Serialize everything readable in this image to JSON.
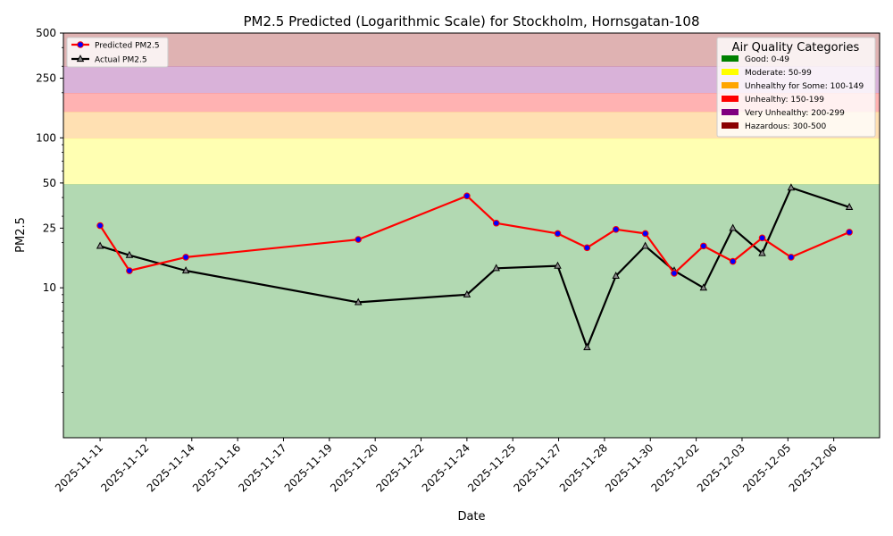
{
  "chart_data": {
    "type": "line",
    "title": "PM2.5 Predicted (Logarithmic Scale) for Stockholm, Hornsgatan-108",
    "xlabel": "Date",
    "ylabel": "PM2.5",
    "yscale": "log",
    "ylim": [
      1,
      500
    ],
    "xlim_days": [
      -0.8,
      17.0
    ],
    "yticks": [
      10,
      25,
      50,
      100,
      250,
      500
    ],
    "ytick_labels": [
      "10",
      "25",
      "50",
      "100",
      "250",
      "500"
    ],
    "xticks": [
      {
        "day": 0,
        "label": "2025-11-11"
      },
      {
        "day": 1,
        "label": "2025-11-12"
      },
      {
        "day": 2,
        "label": "2025-11-14"
      },
      {
        "day": 3,
        "label": "2025-11-16"
      },
      {
        "day": 4,
        "label": "2025-11-17"
      },
      {
        "day": 5,
        "label": "2025-11-19"
      },
      {
        "day": 6,
        "label": "2025-11-20"
      },
      {
        "day": 7,
        "label": "2025-11-22"
      },
      {
        "day": 8,
        "label": "2025-11-24"
      },
      {
        "day": 9,
        "label": "2025-11-25"
      },
      {
        "day": 10,
        "label": "2025-11-27"
      },
      {
        "day": 11,
        "label": "2025-11-28"
      },
      {
        "day": 12,
        "label": "2025-11-30"
      },
      {
        "day": 13,
        "label": "2025-12-02"
      },
      {
        "day": 14,
        "label": "2025-12-03"
      },
      {
        "day": 15,
        "label": "2025-12-05"
      },
      {
        "day": 16,
        "label": "2025-12-06"
      }
    ],
    "bands": [
      {
        "name": "Good: 0-49",
        "min": 1,
        "max": 49,
        "fill": "#b2d9b2",
        "legend_color": "#008000"
      },
      {
        "name": "Moderate: 50-99",
        "min": 49,
        "max": 99,
        "fill": "#ffffb2",
        "legend_color": "#ffff00"
      },
      {
        "name": "Unhealthy for Some: 100-149",
        "min": 99,
        "max": 149,
        "fill": "#ffe0b2",
        "legend_color": "#ffa500"
      },
      {
        "name": "Unhealthy: 150-199",
        "min": 149,
        "max": 199,
        "fill": "#ffb2b2",
        "legend_color": "#ff0000"
      },
      {
        "name": "Very Unhealthy: 200-299",
        "min": 199,
        "max": 299,
        "fill": "#d9b2d9",
        "legend_color": "#800080"
      },
      {
        "name": "Hazardous: 300-500",
        "min": 299,
        "max": 500,
        "fill": "#dfb2b2",
        "legend_color": "#8b0000"
      }
    ],
    "band_legend_title": "Air Quality Categories",
    "series": [
      {
        "name": "Predicted PM2.5",
        "color": "#ff0000",
        "marker": "circle",
        "marker_face": "#0000ff",
        "x": [
          0,
          0.64,
          1.87,
          5.63,
          8.0,
          8.64,
          9.98,
          10.62,
          11.25,
          11.89,
          12.52,
          13.16,
          13.8,
          14.44,
          15.07,
          16.34
        ],
        "y": [
          26,
          13,
          16,
          21,
          41,
          27,
          23,
          18.5,
          24.5,
          23,
          12.5,
          19,
          15,
          21.5,
          16,
          23.5
        ]
      },
      {
        "name": "Actual PM2.5",
        "color": "#000000",
        "marker": "triangle",
        "marker_face": "#888888",
        "x": [
          0,
          0.64,
          1.87,
          5.63,
          8.0,
          8.64,
          9.98,
          10.62,
          11.25,
          11.89,
          12.52,
          13.16,
          13.8,
          14.44,
          15.07,
          16.34
        ],
        "y": [
          19,
          16.5,
          13,
          8,
          9,
          13.5,
          14,
          4,
          12,
          19,
          13,
          10,
          25,
          17,
          46.5,
          34.5
        ]
      }
    ]
  }
}
